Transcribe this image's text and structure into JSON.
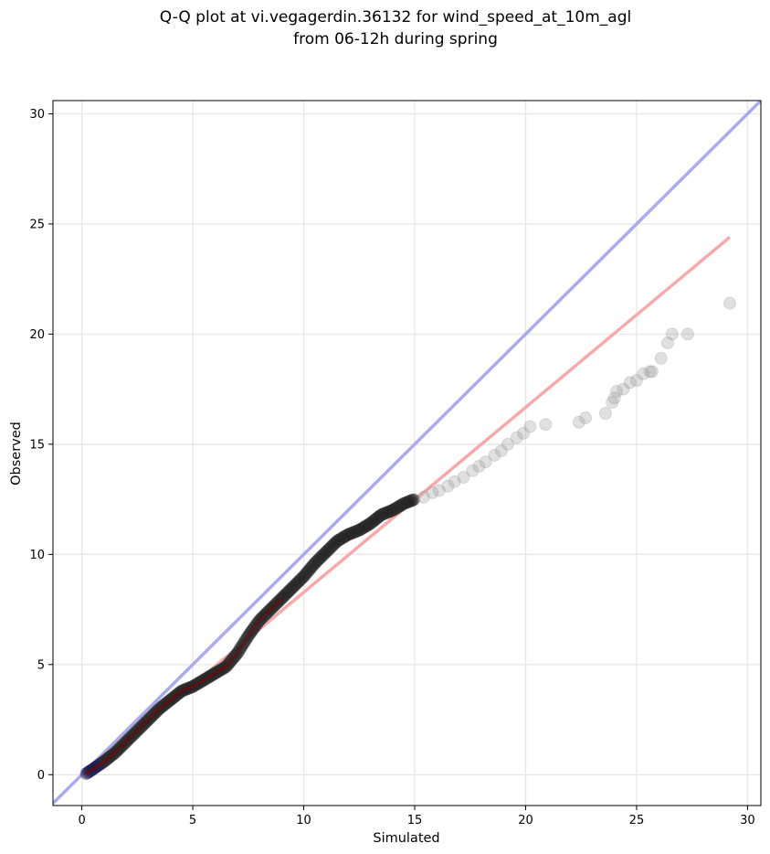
{
  "chart_data": {
    "type": "scatter",
    "title_line1": "Q-Q plot at vi.vegagerdin.36132 for wind_speed_at_10m_agl",
    "title_line2": "from 06-12h during spring",
    "xlabel": "Simulated",
    "ylabel": "Observed",
    "xlim": [
      -1.3,
      30.6
    ],
    "ylim": [
      -1.4,
      30.6
    ],
    "xticks": [
      0,
      5,
      10,
      15,
      20,
      25,
      30
    ],
    "yticks": [
      0,
      5,
      10,
      15,
      20,
      25,
      30
    ],
    "grid": true,
    "reference_line": {
      "x": [
        -1.3,
        30.6
      ],
      "y": [
        -1.3,
        30.6
      ],
      "color": "#aaaaf0"
    },
    "fit_line": {
      "x": [
        0.2,
        29.2
      ],
      "y": [
        0.05,
        24.4
      ],
      "color": "#f7a9a9"
    },
    "tail_points": {
      "x": [
        15.4,
        15.8,
        16.1,
        16.5,
        16.8,
        17.2,
        17.6,
        17.9,
        18.2,
        18.6,
        18.9,
        19.2,
        19.6,
        19.9,
        20.2,
        20.9,
        22.4,
        22.7,
        23.6,
        23.9,
        24.0,
        24.1,
        24.4,
        24.7,
        25.0,
        25.3,
        25.6,
        25.7,
        26.1,
        26.4,
        26.6,
        27.3,
        29.2
      ],
      "y": [
        12.6,
        12.8,
        12.9,
        13.1,
        13.3,
        13.5,
        13.8,
        14.0,
        14.2,
        14.5,
        14.7,
        15.0,
        15.3,
        15.5,
        15.8,
        15.9,
        16.0,
        16.2,
        16.4,
        16.9,
        17.1,
        17.4,
        17.5,
        17.8,
        17.9,
        18.2,
        18.3,
        18.3,
        18.9,
        19.6,
        20.0,
        20.0,
        21.4
      ]
    },
    "main_curve": {
      "x": [
        0.2,
        0.5,
        1.0,
        1.5,
        2.0,
        2.5,
        3.0,
        3.5,
        4.0,
        4.5,
        5.0,
        5.5,
        6.0,
        6.5,
        7.0,
        7.5,
        8.0,
        8.5,
        9.0,
        9.5,
        10.0,
        10.5,
        11.0,
        11.5,
        12.0,
        12.5,
        13.0,
        13.5,
        14.0,
        14.5,
        15.0
      ],
      "y": [
        0.05,
        0.25,
        0.6,
        1.0,
        1.5,
        2.0,
        2.5,
        3.0,
        3.4,
        3.8,
        4.0,
        4.3,
        4.6,
        4.9,
        5.5,
        6.3,
        7.0,
        7.5,
        8.0,
        8.5,
        9.0,
        9.6,
        10.1,
        10.6,
        10.9,
        11.1,
        11.4,
        11.8,
        12.0,
        12.3,
        12.5
      ]
    }
  }
}
